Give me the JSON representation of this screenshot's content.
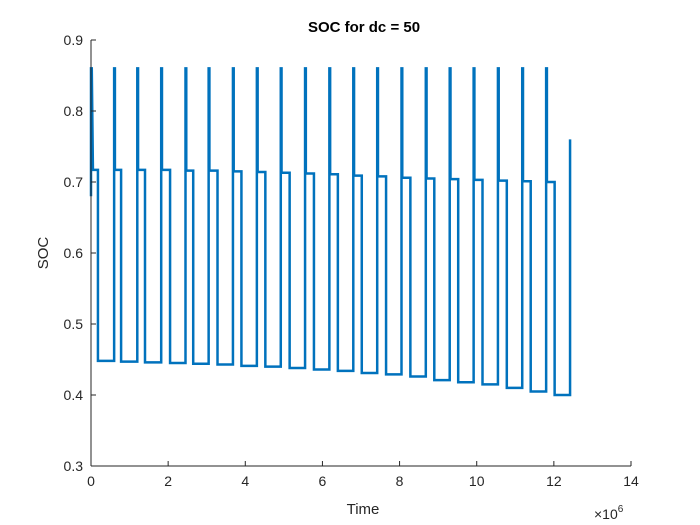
{
  "chart_data": {
    "type": "line",
    "title": "SOC for dc = 50",
    "xlabel": "Time",
    "ylabel": "SOC",
    "x_exponent_label": "×10",
    "x_exponent_power": "6",
    "xlim": [
      0,
      14
    ],
    "ylim": [
      0.3,
      0.9
    ],
    "xticks": [
      0,
      2,
      4,
      6,
      8,
      10,
      12,
      14
    ],
    "yticks": [
      0.3,
      0.4,
      0.5,
      0.6,
      0.7,
      0.8,
      0.9
    ],
    "xtick_labels": [
      "0",
      "2",
      "4",
      "6",
      "8",
      "10",
      "12",
      "14"
    ],
    "ytick_labels": [
      "0.3",
      "0.4",
      "0.5",
      "0.6",
      "0.7",
      "0.8",
      "0.9"
    ],
    "grid": false,
    "line_color": "#0072BD",
    "series": [
      {
        "x_unit_note": "x values in units of 10^6 (Time)",
        "x": [
          0,
          0,
          0.02,
          0.05,
          0.05,
          0.18,
          0.18,
          0.6,
          0.6,
          0.62,
          0.62,
          0.78,
          0.78,
          1.2,
          1.2,
          1.22,
          1.22,
          1.4,
          1.4,
          1.82,
          1.82,
          1.84,
          1.84,
          2.05,
          2.05,
          2.45,
          2.45,
          2.47,
          2.47,
          2.65,
          2.65,
          3.05,
          3.05,
          3.07,
          3.07,
          3.28,
          3.28,
          3.68,
          3.68,
          3.7,
          3.7,
          3.9,
          3.9,
          4.3,
          4.3,
          4.32,
          4.32,
          4.52,
          4.52,
          4.92,
          4.92,
          4.94,
          4.94,
          5.15,
          5.15,
          5.55,
          5.55,
          5.57,
          5.57,
          5.78,
          5.78,
          6.18,
          6.18,
          6.2,
          6.2,
          6.4,
          6.4,
          6.8,
          6.8,
          6.82,
          6.82,
          7.02,
          7.02,
          7.42,
          7.42,
          7.44,
          7.44,
          7.65,
          7.65,
          8.05,
          8.05,
          8.07,
          8.07,
          8.28,
          8.28,
          8.68,
          8.68,
          8.7,
          8.7,
          8.9,
          8.9,
          9.3,
          9.3,
          9.32,
          9.32,
          9.52,
          9.52,
          9.92,
          9.92,
          9.94,
          9.94,
          10.15,
          10.15,
          10.55,
          10.55,
          10.57,
          10.57,
          10.78,
          10.78,
          11.18,
          11.18,
          11.2,
          11.2,
          11.4,
          11.4,
          11.8,
          11.8,
          11.82,
          11.82,
          12.02,
          12.02,
          12.42,
          12.42
        ],
        "y": [
          0.68,
          0.86,
          0.86,
          0.717,
          0.717,
          0.717,
          0.448,
          0.448,
          0.86,
          0.86,
          0.717,
          0.717,
          0.447,
          0.447,
          0.86,
          0.86,
          0.717,
          0.717,
          0.446,
          0.446,
          0.86,
          0.86,
          0.717,
          0.717,
          0.445,
          0.445,
          0.86,
          0.86,
          0.716,
          0.716,
          0.444,
          0.444,
          0.86,
          0.86,
          0.716,
          0.716,
          0.443,
          0.443,
          0.86,
          0.86,
          0.715,
          0.715,
          0.441,
          0.441,
          0.86,
          0.86,
          0.714,
          0.714,
          0.44,
          0.44,
          0.86,
          0.86,
          0.713,
          0.713,
          0.438,
          0.438,
          0.86,
          0.86,
          0.712,
          0.712,
          0.436,
          0.436,
          0.86,
          0.86,
          0.711,
          0.711,
          0.434,
          0.434,
          0.86,
          0.86,
          0.709,
          0.709,
          0.431,
          0.431,
          0.86,
          0.86,
          0.708,
          0.708,
          0.429,
          0.429,
          0.86,
          0.86,
          0.706,
          0.706,
          0.426,
          0.426,
          0.86,
          0.86,
          0.705,
          0.705,
          0.421,
          0.421,
          0.86,
          0.86,
          0.704,
          0.704,
          0.418,
          0.418,
          0.86,
          0.86,
          0.703,
          0.703,
          0.415,
          0.415,
          0.86,
          0.86,
          0.702,
          0.702,
          0.41,
          0.41,
          0.86,
          0.86,
          0.701,
          0.701,
          0.405,
          0.405,
          0.86,
          0.86,
          0.7,
          0.7,
          0.4,
          0.4,
          0.76
        ]
      }
    ]
  }
}
